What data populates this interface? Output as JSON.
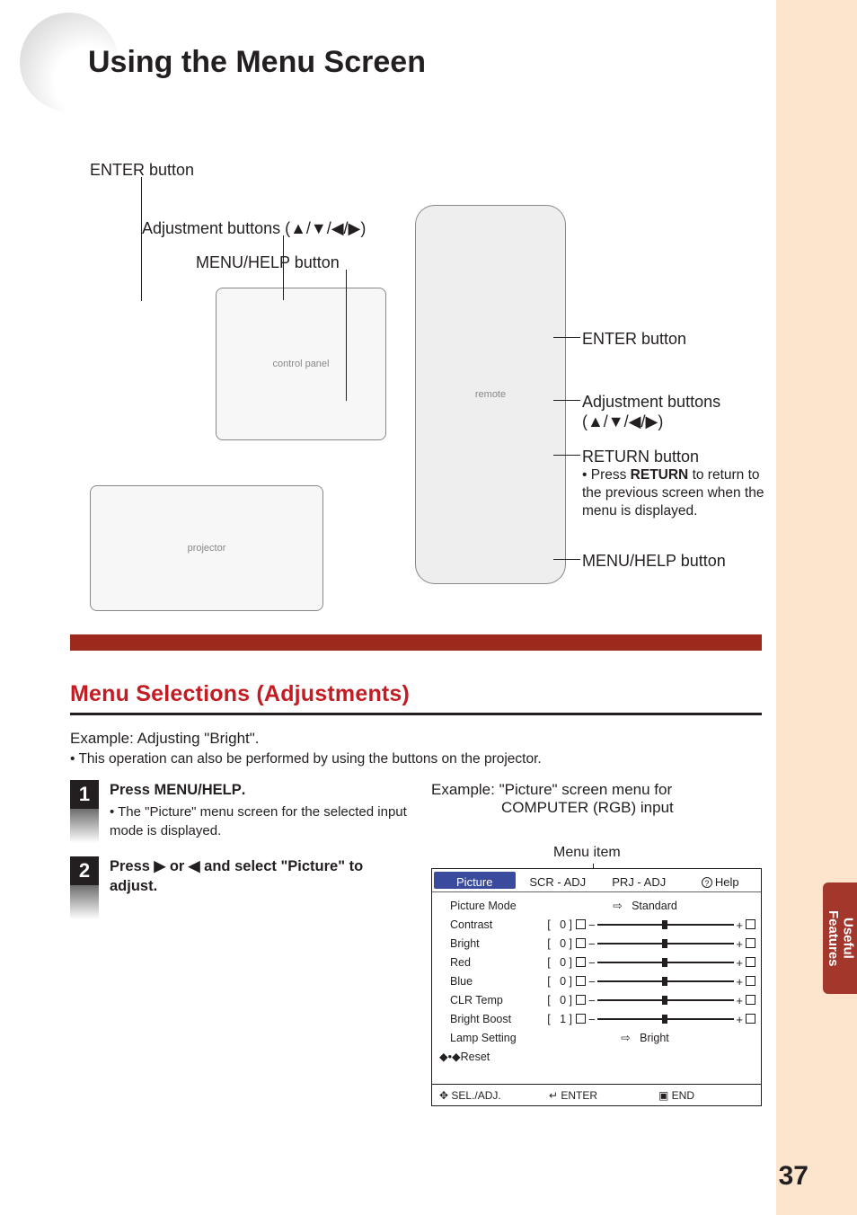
{
  "title": "Using the Menu Screen",
  "pageNumber": "37",
  "sideTab": "Useful\nFeatures",
  "leftLabels": {
    "enter": "ENTER button",
    "adj": "Adjustment buttons (▲/▼/◀/▶)",
    "menu": "MENU/HELP button"
  },
  "rightLabels": {
    "enter": "ENTER button",
    "adj1": "Adjustment buttons",
    "adj2": "(▲/▼/◀/▶)",
    "return": "RETURN button",
    "retSub": "• Press RETURN to return to the previous screen when the menu is displayed.",
    "menu": "MENU/HELP button"
  },
  "section": "Menu Selections (Adjustments)",
  "example": "Example: Adjusting \"Bright\".",
  "exBullet": "• This operation can also be performed by using the buttons on the projector.",
  "steps": [
    {
      "n": "1",
      "head": "Press MENU/HELP.",
      "sub": "• The \"Picture\" menu screen for the selected input mode is displayed."
    },
    {
      "n": "2",
      "head": "Press ▶ or ◀ and select \"Picture\" to adjust.",
      "sub": ""
    }
  ],
  "rightExample1": "Example:  \"Picture\" screen menu for",
  "rightExample2": "COMPUTER (RGB) input",
  "menuItemLabel": "Menu item",
  "menu": {
    "tabs": [
      "Picture",
      "SCR - ADJ",
      "PRJ - ADJ",
      "Help"
    ],
    "activeTab": 0,
    "rows": [
      {
        "name": "Picture Mode",
        "type": "arrow",
        "value": "Standard"
      },
      {
        "name": "Contrast",
        "type": "slider",
        "val": "0"
      },
      {
        "name": "Bright",
        "type": "slider",
        "val": "0"
      },
      {
        "name": "Red",
        "type": "slider",
        "val": "0"
      },
      {
        "name": "Blue",
        "type": "slider",
        "val": "0"
      },
      {
        "name": "CLR Temp",
        "type": "slider",
        "val": "0"
      },
      {
        "name": "Bright Boost",
        "type": "slider",
        "val": "1"
      },
      {
        "name": "Lamp Setting",
        "type": "arrow",
        "value": "Bright"
      },
      {
        "name": "Reset",
        "type": "reset"
      }
    ],
    "footer": [
      "✥ SEL./ADJ.",
      "↵ ENTER",
      "▣ END"
    ]
  },
  "colors": {
    "red": "#c31d23",
    "darkred": "#9c2a1c",
    "peach": "#fce5cc",
    "tabblue": "#3a4a9c"
  }
}
